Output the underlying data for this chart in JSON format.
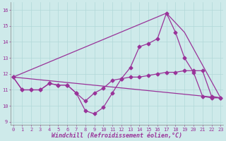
{
  "xlabel": "Windchill (Refroidissement éolien,°C)",
  "x_ticks": [
    0,
    1,
    2,
    3,
    4,
    5,
    6,
    7,
    8,
    9,
    10,
    11,
    12,
    13,
    14,
    15,
    16,
    17,
    18,
    19,
    20,
    21,
    22,
    23
  ],
  "y_ticks": [
    9,
    10,
    11,
    12,
    13,
    14,
    15,
    16
  ],
  "ylim": [
    8.8,
    16.5
  ],
  "xlim": [
    -0.3,
    23.3
  ],
  "bg_color": "#ceeaea",
  "grid_color": "#b0d8d8",
  "line_color": "#993399",
  "line1_x": [
    0,
    1,
    2,
    3,
    4,
    5,
    6,
    7,
    8,
    9,
    10,
    11,
    12,
    13,
    14,
    15,
    16,
    17,
    18,
    19,
    20,
    21,
    22,
    23
  ],
  "line1_y": [
    11.8,
    11.0,
    11.0,
    11.0,
    11.4,
    11.3,
    11.3,
    10.8,
    9.7,
    9.5,
    9.9,
    10.8,
    11.7,
    11.8,
    11.8,
    11.9,
    12.0,
    12.1,
    12.1,
    12.2,
    12.2,
    12.2,
    10.6,
    10.5
  ],
  "line2_x": [
    0,
    1,
    2,
    3,
    4,
    5,
    6,
    7,
    8,
    9,
    10,
    11,
    12,
    13,
    14,
    15,
    16,
    17,
    18,
    19,
    20,
    21,
    22,
    23
  ],
  "line2_y": [
    11.8,
    11.0,
    11.0,
    11.0,
    11.4,
    11.3,
    11.3,
    10.8,
    10.3,
    10.8,
    11.1,
    11.6,
    11.7,
    12.4,
    13.7,
    13.9,
    14.2,
    15.8,
    14.6,
    13.0,
    12.1,
    10.6,
    10.5,
    10.5
  ],
  "line3_x": [
    0,
    23
  ],
  "line3_y": [
    11.8,
    10.5
  ],
  "line4_x": [
    0,
    17,
    19,
    23
  ],
  "line4_y": [
    11.8,
    15.8,
    14.6,
    10.5
  ],
  "markersize": 2.5,
  "linewidth": 0.9,
  "tick_fontsize": 5.0,
  "xlabel_fontsize": 6.0
}
